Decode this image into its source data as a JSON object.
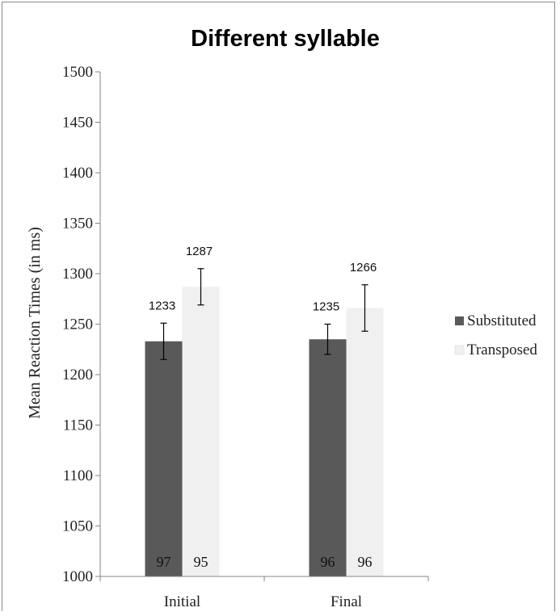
{
  "chart_data": {
    "type": "bar",
    "title": "Different syllable",
    "ylabel": "Mean Reaction Times (in ms)",
    "xlabel": "",
    "categories": [
      "Initial",
      "Final"
    ],
    "ylim": [
      1000,
      1500
    ],
    "yticks": [
      1000,
      1050,
      1100,
      1150,
      1200,
      1250,
      1300,
      1350,
      1400,
      1450,
      1500
    ],
    "legend_position": "right",
    "grid": false,
    "series": [
      {
        "name": "Substituted",
        "color": "#595959",
        "values": [
          1233,
          1235
        ],
        "error_low": [
          1215,
          1220
        ],
        "error_high": [
          1251,
          1250
        ],
        "value_labels": [
          "1233",
          "1235"
        ],
        "count_labels": [
          "97",
          "96"
        ]
      },
      {
        "name": "Transposed",
        "color": "#f0f0f0",
        "values": [
          1287,
          1266
        ],
        "error_low": [
          1269,
          1243
        ],
        "error_high": [
          1305,
          1289
        ],
        "value_labels": [
          "1287",
          "1266"
        ],
        "count_labels": [
          "95",
          "96"
        ]
      }
    ]
  }
}
